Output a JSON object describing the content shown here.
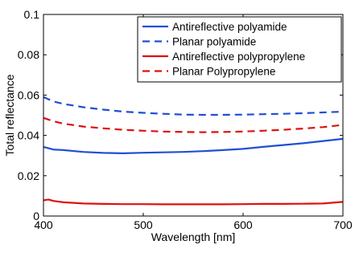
{
  "chart_data": {
    "type": "line",
    "title": "",
    "xlabel": "Wavelength [nm]",
    "ylabel": "Total reflectance",
    "xlim": [
      400,
      700
    ],
    "ylim": [
      0,
      0.1
    ],
    "xticks": [
      400,
      500,
      600,
      700
    ],
    "xtick_labels": [
      "400",
      "500",
      "600",
      "700"
    ],
    "yticks": [
      0,
      0.02,
      0.04,
      0.06,
      0.08,
      0.1
    ],
    "ytick_labels": [
      "0",
      "0.02",
      "0.04",
      "0.06",
      "0.08",
      "0.1"
    ],
    "grid": false,
    "legend_position": "top-right",
    "series": [
      {
        "name": "Antireflective polyamide",
        "color": "#1f4fd6",
        "dash": "solid",
        "x": [
          400,
          410,
          420,
          440,
          460,
          480,
          500,
          520,
          540,
          560,
          580,
          600,
          620,
          640,
          660,
          680,
          700
        ],
        "y": [
          0.0343,
          0.033,
          0.0327,
          0.0318,
          0.0313,
          0.0311,
          0.0314,
          0.0316,
          0.0318,
          0.0322,
          0.0327,
          0.0333,
          0.0343,
          0.0352,
          0.0361,
          0.0372,
          0.0383
        ]
      },
      {
        "name": "Planar polyamide",
        "color": "#1f4fd6",
        "dash": "dashed",
        "x": [
          400,
          410,
          420,
          440,
          460,
          480,
          500,
          520,
          540,
          560,
          580,
          600,
          620,
          640,
          660,
          680,
          700
        ],
        "y": [
          0.059,
          0.0568,
          0.0556,
          0.054,
          0.0528,
          0.0518,
          0.0512,
          0.0507,
          0.0503,
          0.0502,
          0.0502,
          0.0503,
          0.0505,
          0.0507,
          0.051,
          0.0514,
          0.0518
        ]
      },
      {
        "name": "Antireflective polypropylene",
        "color": "#e01010",
        "dash": "solid",
        "x": [
          400,
          405,
          410,
          420,
          440,
          460,
          480,
          500,
          520,
          540,
          560,
          580,
          600,
          620,
          640,
          660,
          680,
          690,
          700
        ],
        "y": [
          0.0078,
          0.0082,
          0.0075,
          0.0068,
          0.0062,
          0.006,
          0.0059,
          0.0059,
          0.0058,
          0.0058,
          0.0058,
          0.0058,
          0.0059,
          0.006,
          0.006,
          0.0061,
          0.0062,
          0.0066,
          0.007
        ]
      },
      {
        "name": "Planar Polypropylene",
        "color": "#e01010",
        "dash": "dashed",
        "x": [
          400,
          410,
          420,
          440,
          460,
          480,
          500,
          520,
          540,
          560,
          580,
          600,
          620,
          640,
          660,
          680,
          700
        ],
        "y": [
          0.0487,
          0.047,
          0.0458,
          0.0444,
          0.0435,
          0.0428,
          0.0423,
          0.0419,
          0.0417,
          0.0416,
          0.0417,
          0.0419,
          0.0423,
          0.0428,
          0.0434,
          0.0441,
          0.0452
        ]
      }
    ]
  }
}
